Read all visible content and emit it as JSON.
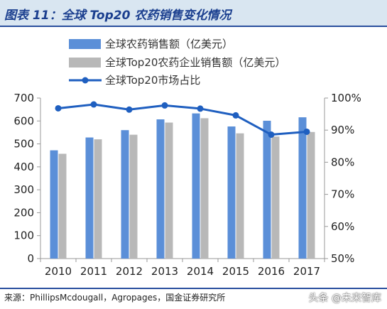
{
  "title": "图表 11：全球 Top20 农药销售变化情况",
  "source": "来源：PhillipsMcdougall，Agropages，国金证券研究所",
  "watermark": "头条 @未来智库",
  "colors": {
    "global_sales": "#5b8fd8",
    "top20_sales": "#b8b8b8",
    "share_line": "#1f5fc0",
    "axis": "#999999"
  },
  "chart_data": {
    "type": "bar",
    "categories": [
      "2010",
      "2011",
      "2012",
      "2013",
      "2014",
      "2015",
      "2016",
      "2017"
    ],
    "series": [
      {
        "name": "全球农药销售额（亿美元）",
        "type": "bar",
        "axis": "left",
        "values": [
          472,
          528,
          560,
          607,
          633,
          576,
          601,
          616
        ]
      },
      {
        "name": "全球Top20农药企业销售额（亿美元）",
        "type": "bar",
        "axis": "left",
        "values": [
          457,
          520,
          540,
          593,
          612,
          546,
          532,
          552
        ]
      },
      {
        "name": "全球Top20市场占比",
        "type": "line",
        "axis": "right",
        "values": [
          96.8,
          98.0,
          96.4,
          97.7,
          96.7,
          94.6,
          88.6,
          89.5
        ]
      }
    ],
    "y_left": {
      "min": 0,
      "max": 700,
      "ticks": [
        "0",
        "100",
        "200",
        "300",
        "400",
        "500",
        "600",
        "700"
      ]
    },
    "y_right": {
      "min": 50,
      "max": 100,
      "ticks": [
        "50%",
        "60%",
        "70%",
        "80%",
        "90%",
        "100%"
      ]
    },
    "legend_position": "top-left",
    "grid": false
  }
}
